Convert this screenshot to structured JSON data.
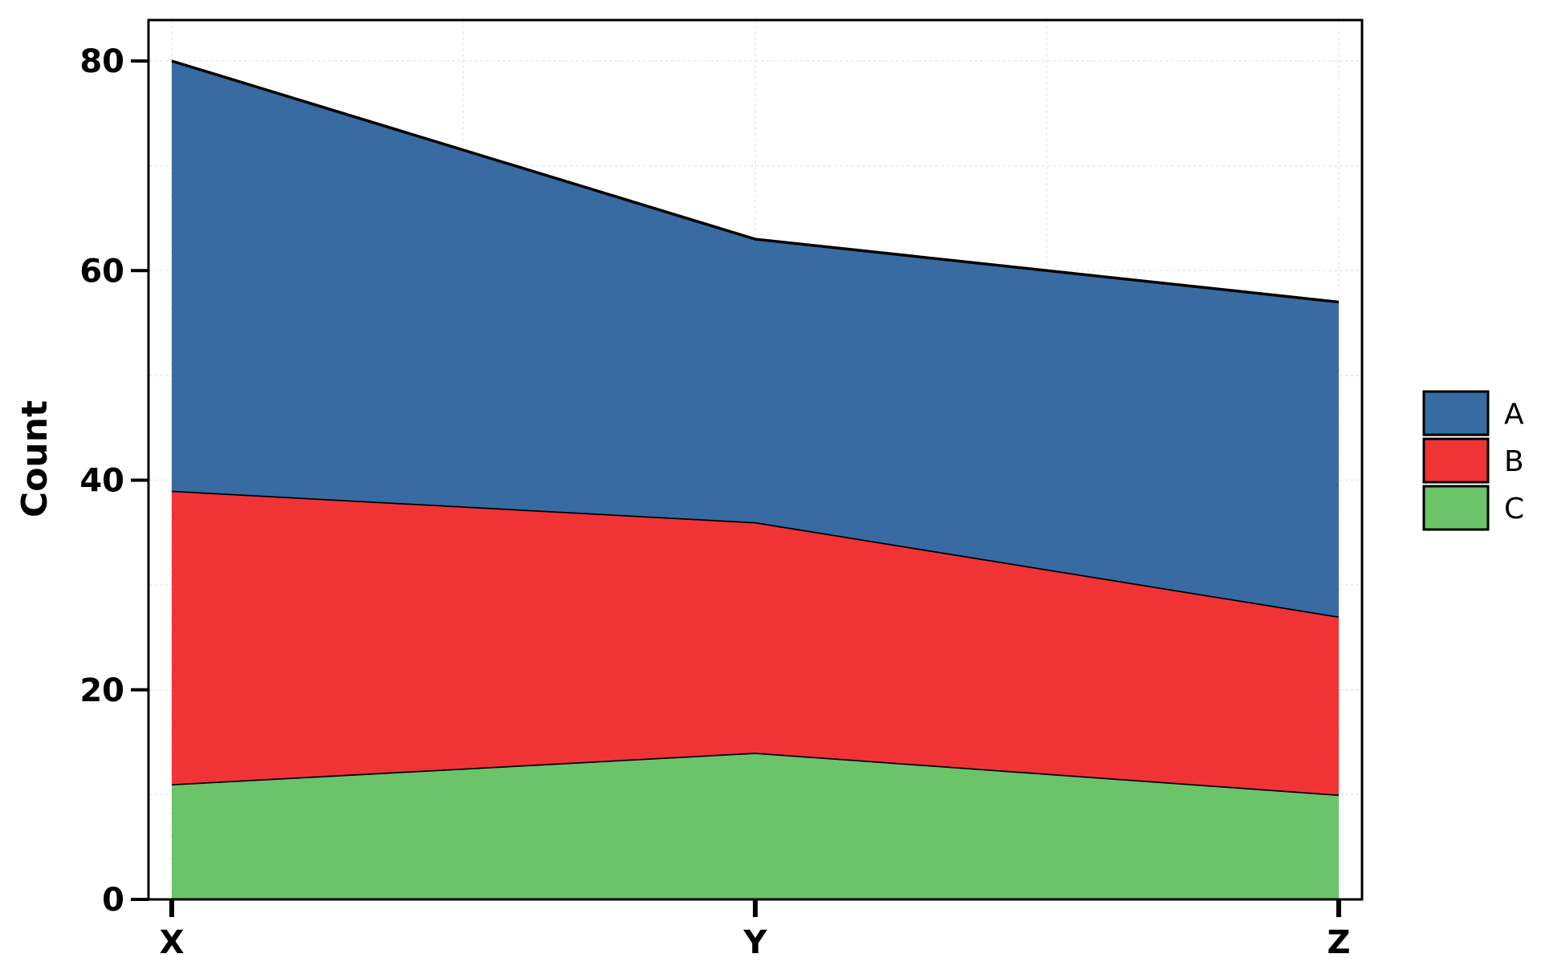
{
  "chart_data": {
    "type": "area",
    "stacked": true,
    "categories": [
      "X",
      "Y",
      "Z"
    ],
    "series": [
      {
        "name": "C",
        "values": [
          11,
          14,
          10
        ],
        "color": "#6bc46a"
      },
      {
        "name": "B",
        "values": [
          28,
          22,
          17
        ],
        "color": "#f03436"
      },
      {
        "name": "A",
        "values": [
          41,
          27,
          30
        ],
        "color": "#376ba2"
      }
    ],
    "xlabel": "",
    "ylabel": "Count",
    "ylim": [
      0,
      84
    ],
    "yticks": [
      0,
      20,
      40,
      60,
      80
    ],
    "grid": true,
    "legend": "right"
  }
}
